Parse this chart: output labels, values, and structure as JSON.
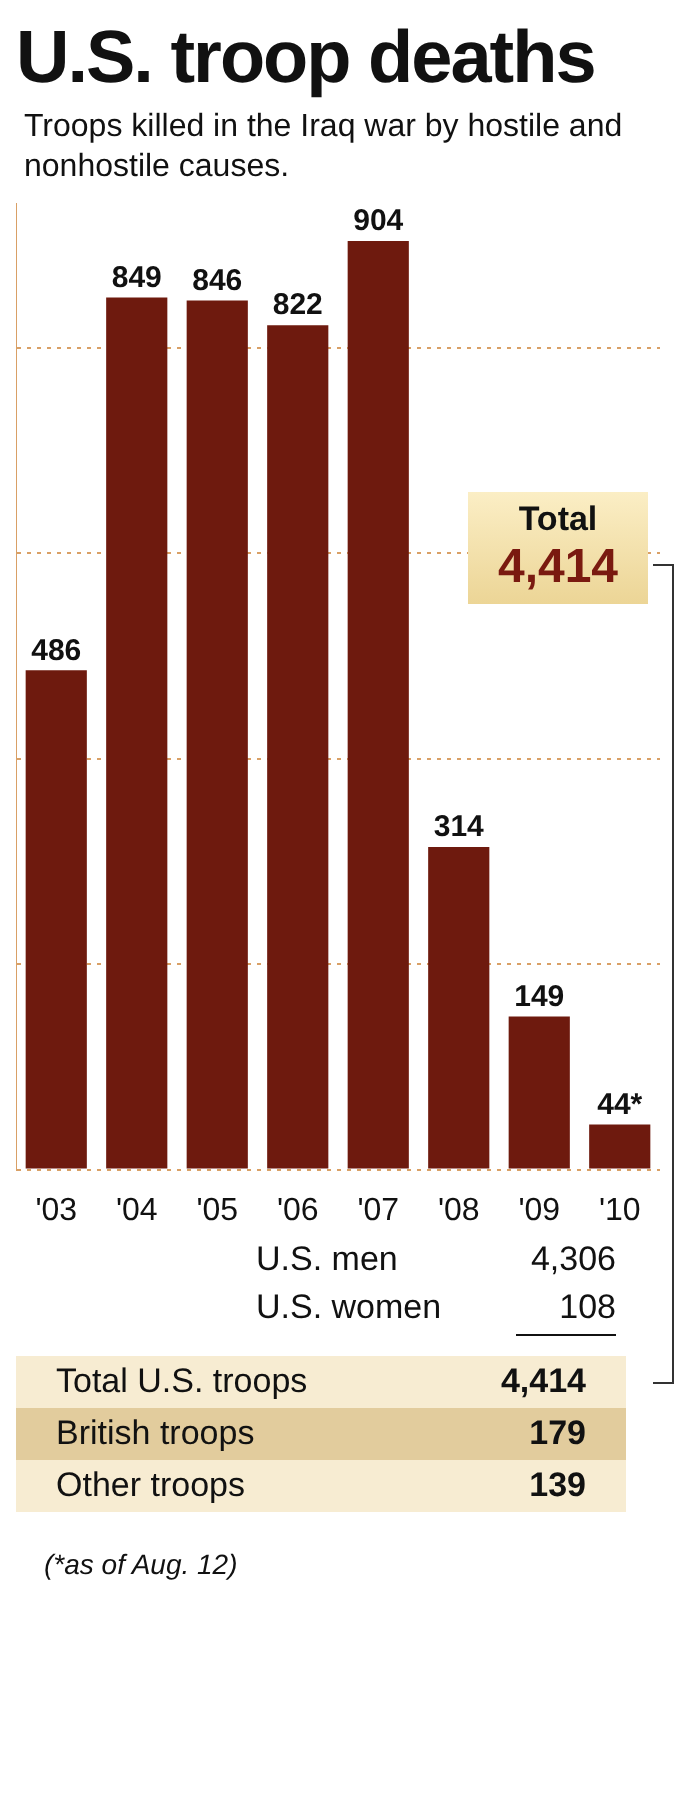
{
  "chart_data": {
    "type": "bar",
    "title": "U.S. troop deaths",
    "subtitle": "Troops killed in the Iraq war by hostile and nonhostile causes.",
    "categories": [
      "'03",
      "'04",
      "'05",
      "'06",
      "'07",
      "'08",
      "'09",
      "'10"
    ],
    "values": [
      486,
      849,
      846,
      822,
      904,
      314,
      149,
      44
    ],
    "value_labels": [
      "486",
      "849",
      "846",
      "822",
      "904",
      "314",
      "149",
      "44*"
    ],
    "color": "#6e1a0e",
    "ylim": [
      0,
      940
    ],
    "yticks": [
      {
        "value": 0,
        "label": null
      },
      {
        "value": 200,
        "label": null
      },
      {
        "value": 400,
        "label": null
      },
      {
        "value": 600,
        "label": null
      },
      {
        "value": 800,
        "label": null
      }
    ],
    "tick_labels": "x",
    "grid": "y",
    "annotations": [
      "Total",
      "4,414",
      "U.S. men",
      "4,306",
      "U.S. women",
      "108",
      "Total U.S. troops",
      "4,414",
      "British troops",
      "179",
      "Other troops",
      "139",
      "(*as of Aug. 12)"
    ]
  }
}
